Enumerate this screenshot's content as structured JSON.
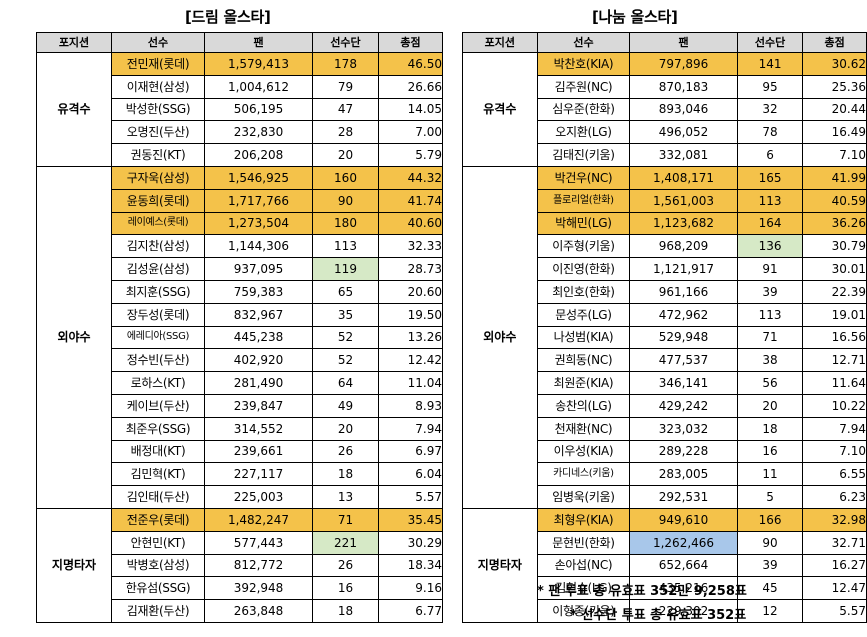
{
  "headers": [
    "포지션",
    "선수",
    "팬",
    "선수단",
    "총점"
  ],
  "left": {
    "title": "[드림 올스타]",
    "groups": [
      {
        "position": "유격수",
        "rows": [
          {
            "name": "전민재(롯데)",
            "fan": "1,579,413",
            "players": "178",
            "total": "46.50",
            "hl": true
          },
          {
            "name": "이재현(삼성)",
            "fan": "1,004,612",
            "players": "79",
            "total": "26.66"
          },
          {
            "name": "박성한(SSG)",
            "fan": "506,195",
            "players": "47",
            "total": "14.05"
          },
          {
            "name": "오명진(두산)",
            "fan": "232,830",
            "players": "28",
            "total": "7.00"
          },
          {
            "name": "권동진(KT)",
            "fan": "206,208",
            "players": "20",
            "total": "5.79"
          }
        ]
      },
      {
        "position": "외야수",
        "rows": [
          {
            "name": "구자욱(삼성)",
            "fan": "1,546,925",
            "players": "160",
            "total": "44.32",
            "hl": true
          },
          {
            "name": "윤동희(롯데)",
            "fan": "1,717,766",
            "players": "90",
            "total": "41.74",
            "hl": true
          },
          {
            "name": "레이예스(롯데)",
            "fan": "1,273,504",
            "players": "180",
            "total": "40.60",
            "hl": true,
            "small": true
          },
          {
            "name": "김지찬(삼성)",
            "fan": "1,144,306",
            "players": "113",
            "total": "32.33"
          },
          {
            "name": "김성윤(삼성)",
            "fan": "937,095",
            "players": "119",
            "total": "28.73",
            "green": "players"
          },
          {
            "name": "최지훈(SSG)",
            "fan": "759,383",
            "players": "65",
            "total": "20.60"
          },
          {
            "name": "장두성(롯데)",
            "fan": "832,967",
            "players": "35",
            "total": "19.50"
          },
          {
            "name": "에레디아(SSG)",
            "fan": "445,238",
            "players": "52",
            "total": "13.26",
            "small": true
          },
          {
            "name": "정수빈(두산)",
            "fan": "402,920",
            "players": "52",
            "total": "12.42"
          },
          {
            "name": "로하스(KT)",
            "fan": "281,490",
            "players": "64",
            "total": "11.04"
          },
          {
            "name": "케이브(두산)",
            "fan": "239,847",
            "players": "49",
            "total": "8.93"
          },
          {
            "name": "최준우(SSG)",
            "fan": "314,552",
            "players": "20",
            "total": "7.94"
          },
          {
            "name": "배정대(KT)",
            "fan": "239,661",
            "players": "26",
            "total": "6.97"
          },
          {
            "name": "김민혁(KT)",
            "fan": "227,117",
            "players": "18",
            "total": "6.04"
          },
          {
            "name": "김인태(두산)",
            "fan": "225,003",
            "players": "13",
            "total": "5.57"
          }
        ]
      },
      {
        "position": "지명타자",
        "rows": [
          {
            "name": "전준우(롯데)",
            "fan": "1,482,247",
            "players": "71",
            "total": "35.45",
            "hl": true
          },
          {
            "name": "안현민(KT)",
            "fan": "577,443",
            "players": "221",
            "total": "30.29",
            "green": "players"
          },
          {
            "name": "박병호(삼성)",
            "fan": "812,772",
            "players": "26",
            "total": "18.34"
          },
          {
            "name": "한유섬(SSG)",
            "fan": "392,948",
            "players": "16",
            "total": "9.16"
          },
          {
            "name": "김재환(두산)",
            "fan": "263,848",
            "players": "18",
            "total": "6.77"
          }
        ]
      }
    ]
  },
  "right": {
    "title": "[나눔 올스타]",
    "groups": [
      {
        "position": "유격수",
        "rows": [
          {
            "name": "박찬호(KIA)",
            "fan": "797,896",
            "players": "141",
            "total": "30.62",
            "hl": true
          },
          {
            "name": "김주원(NC)",
            "fan": "870,183",
            "players": "95",
            "total": "25.36"
          },
          {
            "name": "심우준(한화)",
            "fan": "893,046",
            "players": "32",
            "total": "20.44"
          },
          {
            "name": "오지환(LG)",
            "fan": "496,052",
            "players": "78",
            "total": "16.49"
          },
          {
            "name": "김태진(키움)",
            "fan": "332,081",
            "players": "6",
            "total": "7.10"
          }
        ]
      },
      {
        "position": "외야수",
        "rows": [
          {
            "name": "박건우(NC)",
            "fan": "1,408,171",
            "players": "165",
            "total": "41.99",
            "hl": true
          },
          {
            "name": "플로리얼(한화)",
            "fan": "1,561,003",
            "players": "113",
            "total": "40.59",
            "hl": true,
            "small": true
          },
          {
            "name": "박해민(LG)",
            "fan": "1,123,682",
            "players": "164",
            "total": "36.26",
            "hl": true
          },
          {
            "name": "이주형(키움)",
            "fan": "968,209",
            "players": "136",
            "total": "30.79",
            "green": "players"
          },
          {
            "name": "이진영(한화)",
            "fan": "1,121,917",
            "players": "91",
            "total": "30.01"
          },
          {
            "name": "최인호(한화)",
            "fan": "961,166",
            "players": "39",
            "total": "22.39"
          },
          {
            "name": "문성주(LG)",
            "fan": "472,962",
            "players": "113",
            "total": "19.01"
          },
          {
            "name": "나성범(KIA)",
            "fan": "529,948",
            "players": "71",
            "total": "16.56"
          },
          {
            "name": "권희동(NC)",
            "fan": "477,537",
            "players": "38",
            "total": "12.71"
          },
          {
            "name": "최원준(KIA)",
            "fan": "346,141",
            "players": "56",
            "total": "11.64"
          },
          {
            "name": "송찬의(LG)",
            "fan": "429,242",
            "players": "20",
            "total": "10.22"
          },
          {
            "name": "천재환(NC)",
            "fan": "323,032",
            "players": "18",
            "total": "7.94"
          },
          {
            "name": "이우성(KIA)",
            "fan": "289,228",
            "players": "16",
            "total": "7.10"
          },
          {
            "name": "카디네스(키움)",
            "fan": "283,005",
            "players": "11",
            "total": "6.55",
            "small": true
          },
          {
            "name": "임병욱(키움)",
            "fan": "292,531",
            "players": "5",
            "total": "6.23"
          }
        ]
      },
      {
        "position": "지명타자",
        "rows": [
          {
            "name": "최형우(KIA)",
            "fan": "949,610",
            "players": "166",
            "total": "32.98",
            "hl": true
          },
          {
            "name": "문현빈(한화)",
            "fan": "1,262,466",
            "players": "90",
            "total": "32.71",
            "blue": "fan"
          },
          {
            "name": "손아섭(NC)",
            "fan": "652,664",
            "players": "39",
            "total": "16.27"
          },
          {
            "name": "김현수(LG)",
            "fan": "435,216",
            "players": "45",
            "total": "12.47"
          },
          {
            "name": "이형종(키움)",
            "fan": "229,302",
            "players": "12",
            "total": "5.57"
          }
        ]
      }
    ]
  },
  "notes": {
    "fan": "* 팬 투표 총 유효표 352만 9,258표",
    "player": "* 선수단 투표 총 유효표 352표"
  }
}
